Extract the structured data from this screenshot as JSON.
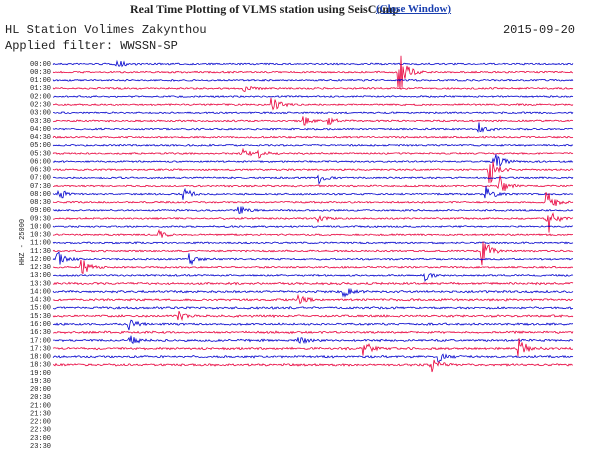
{
  "header": {
    "title": "Real Time Plotting of VLMS station using SeisComp",
    "close_link": "(Close Window)",
    "station": "HL Station Volimes Zakynthou",
    "date": "2015-09-20",
    "filter": "Applied filter: WWSSN-SP"
  },
  "plot": {
    "channel_label": "HHZ - 25000",
    "time_labels": [
      "00:00",
      "00:30",
      "01:00",
      "01:30",
      "02:00",
      "02:30",
      "03:00",
      "03:30",
      "04:00",
      "04:30",
      "05:00",
      "05:30",
      "06:00",
      "06:30",
      "07:00",
      "07:30",
      "08:00",
      "08:30",
      "09:00",
      "09:30",
      "10:00",
      "10:30",
      "11:00",
      "11:30",
      "12:00",
      "12:30",
      "13:00",
      "13:30",
      "14:00",
      "14:30",
      "15:00",
      "15:30",
      "16:00",
      "16:30",
      "17:00",
      "17:30",
      "18:00",
      "18:30",
      "19:00",
      "19:30",
      "20:00",
      "20:30",
      "21:00",
      "21:30",
      "22:00",
      "22:30",
      "23:00",
      "23:30"
    ]
  }
}
